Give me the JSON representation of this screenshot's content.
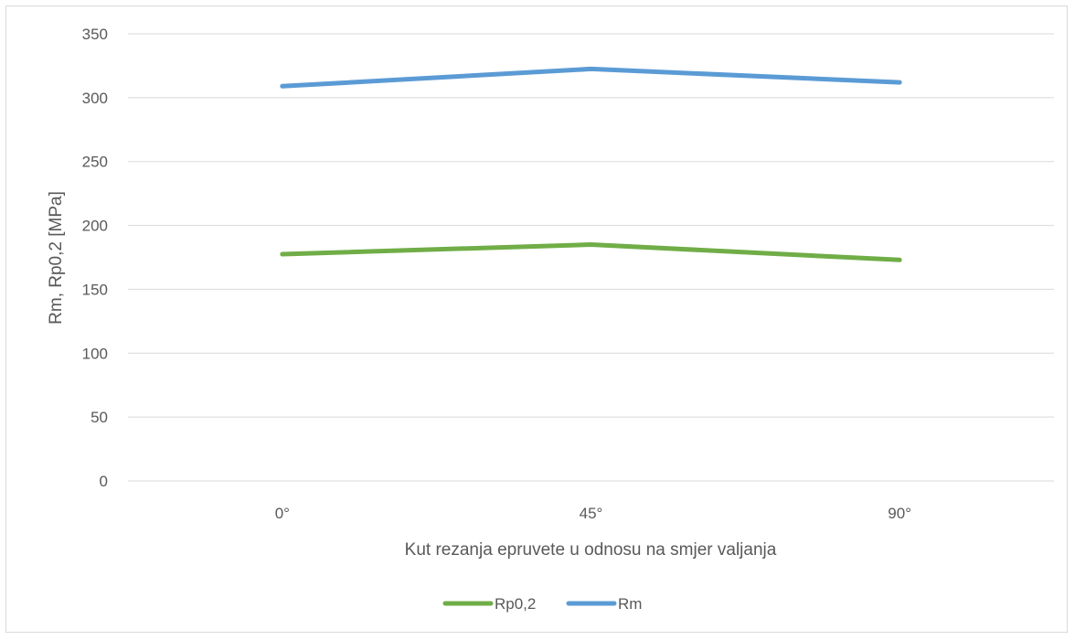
{
  "chart_data": {
    "type": "line",
    "categories": [
      "0°",
      "45°",
      "90°"
    ],
    "series": [
      {
        "name": "Rp0,2",
        "values": [
          177.5,
          185,
          173
        ],
        "color": "#70ad47"
      },
      {
        "name": "Rm",
        "values": [
          309,
          322.5,
          312
        ],
        "color": "#5b9bd5"
      }
    ],
    "yticks": [
      "0",
      "50",
      "100",
      "150",
      "200",
      "250",
      "300",
      "350"
    ],
    "ylim": [
      0,
      350
    ],
    "xlabel": "Kut rezanja epruvete u odnosu na smjer valjanja",
    "ylabel": "Rm, Rp0,2 [MPa]",
    "grid": true,
    "legend_position": "bottom",
    "gridline_color": "#d9d9d9"
  }
}
